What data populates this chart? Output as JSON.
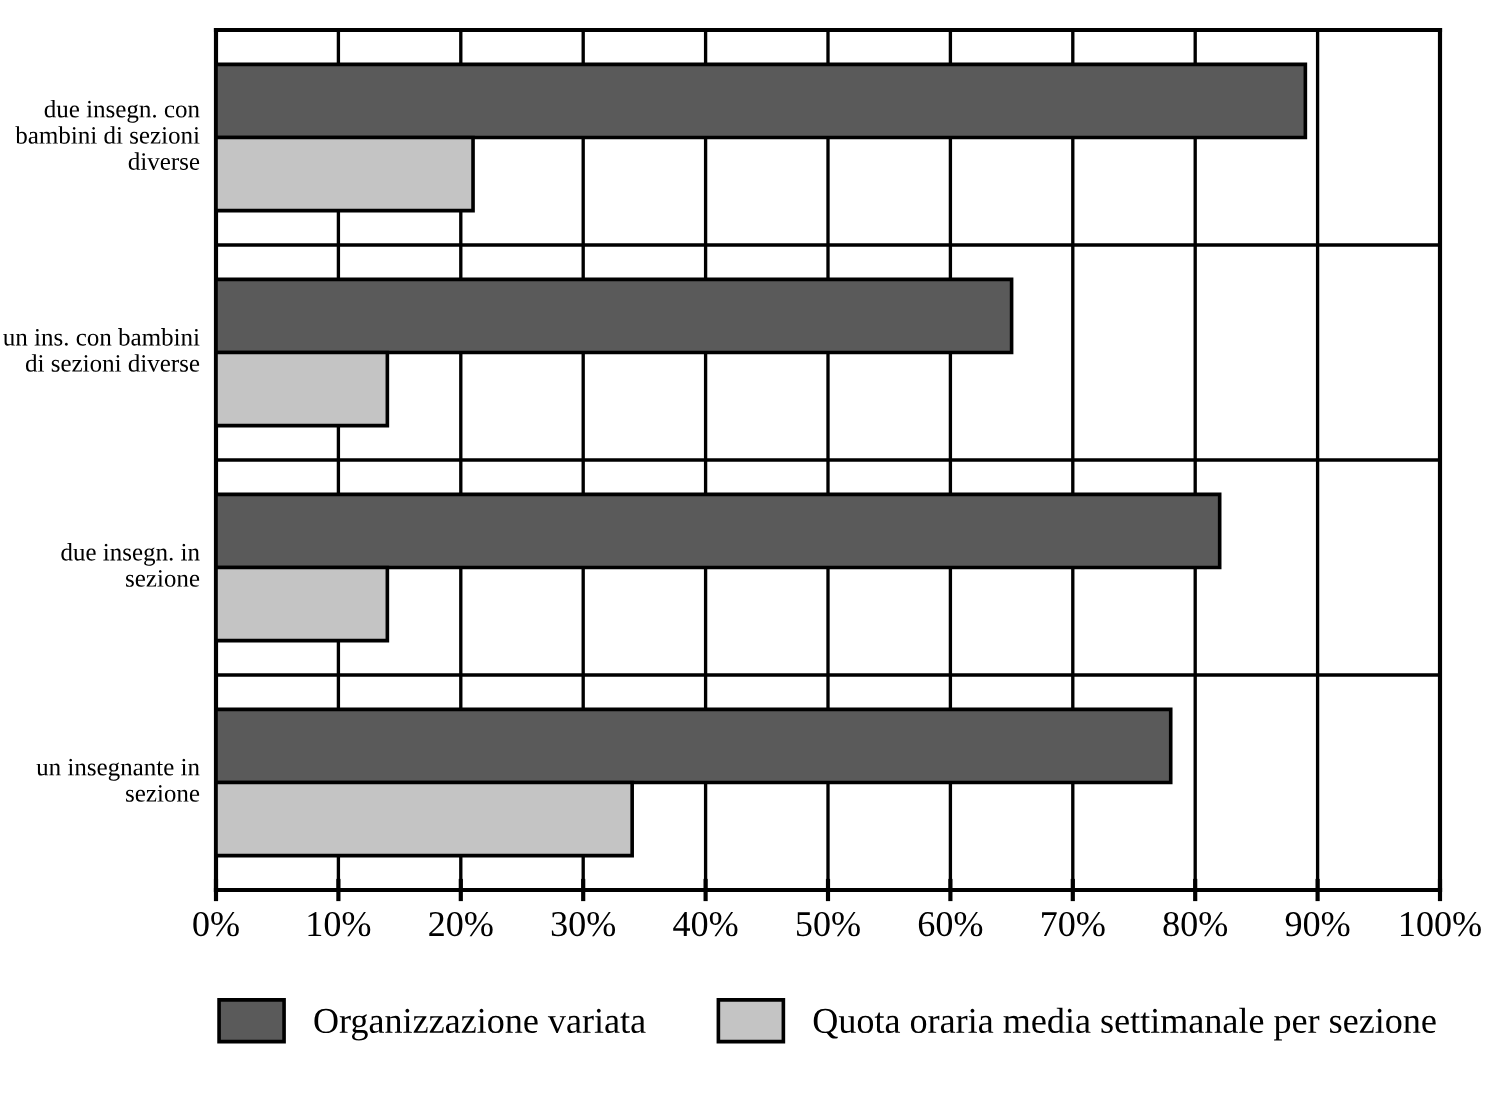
{
  "chart_data": {
    "type": "bar",
    "orientation": "horizontal",
    "categories": [
      "due insegn. con bambini di sezioni diverse",
      "un ins. con bambini di sezioni diverse",
      "due insegn. in sezione",
      "un insegnante in sezione"
    ],
    "series": [
      {
        "name": "Organizzazione variata",
        "color": "#5a5a5a",
        "values": [
          89,
          65,
          82,
          78
        ]
      },
      {
        "name": "Quota oraria media settimanale per sezione",
        "color": "#c4c4c4",
        "values": [
          21,
          14,
          14,
          34
        ]
      }
    ],
    "xlim": [
      0,
      100
    ],
    "xticks": [
      {
        "value": 0,
        "label": "0%"
      },
      {
        "value": 10,
        "label": "10%"
      },
      {
        "value": 20,
        "label": "20%"
      },
      {
        "value": 30,
        "label": "30%"
      },
      {
        "value": 40,
        "label": "40%"
      },
      {
        "value": 50,
        "label": "50%"
      },
      {
        "value": 60,
        "label": "60%"
      },
      {
        "value": 70,
        "label": "70%"
      },
      {
        "value": 80,
        "label": "80%"
      },
      {
        "value": 90,
        "label": "90%"
      },
      {
        "value": 100,
        "label": "100%"
      }
    ],
    "grid": true,
    "legend": "bottom"
  }
}
